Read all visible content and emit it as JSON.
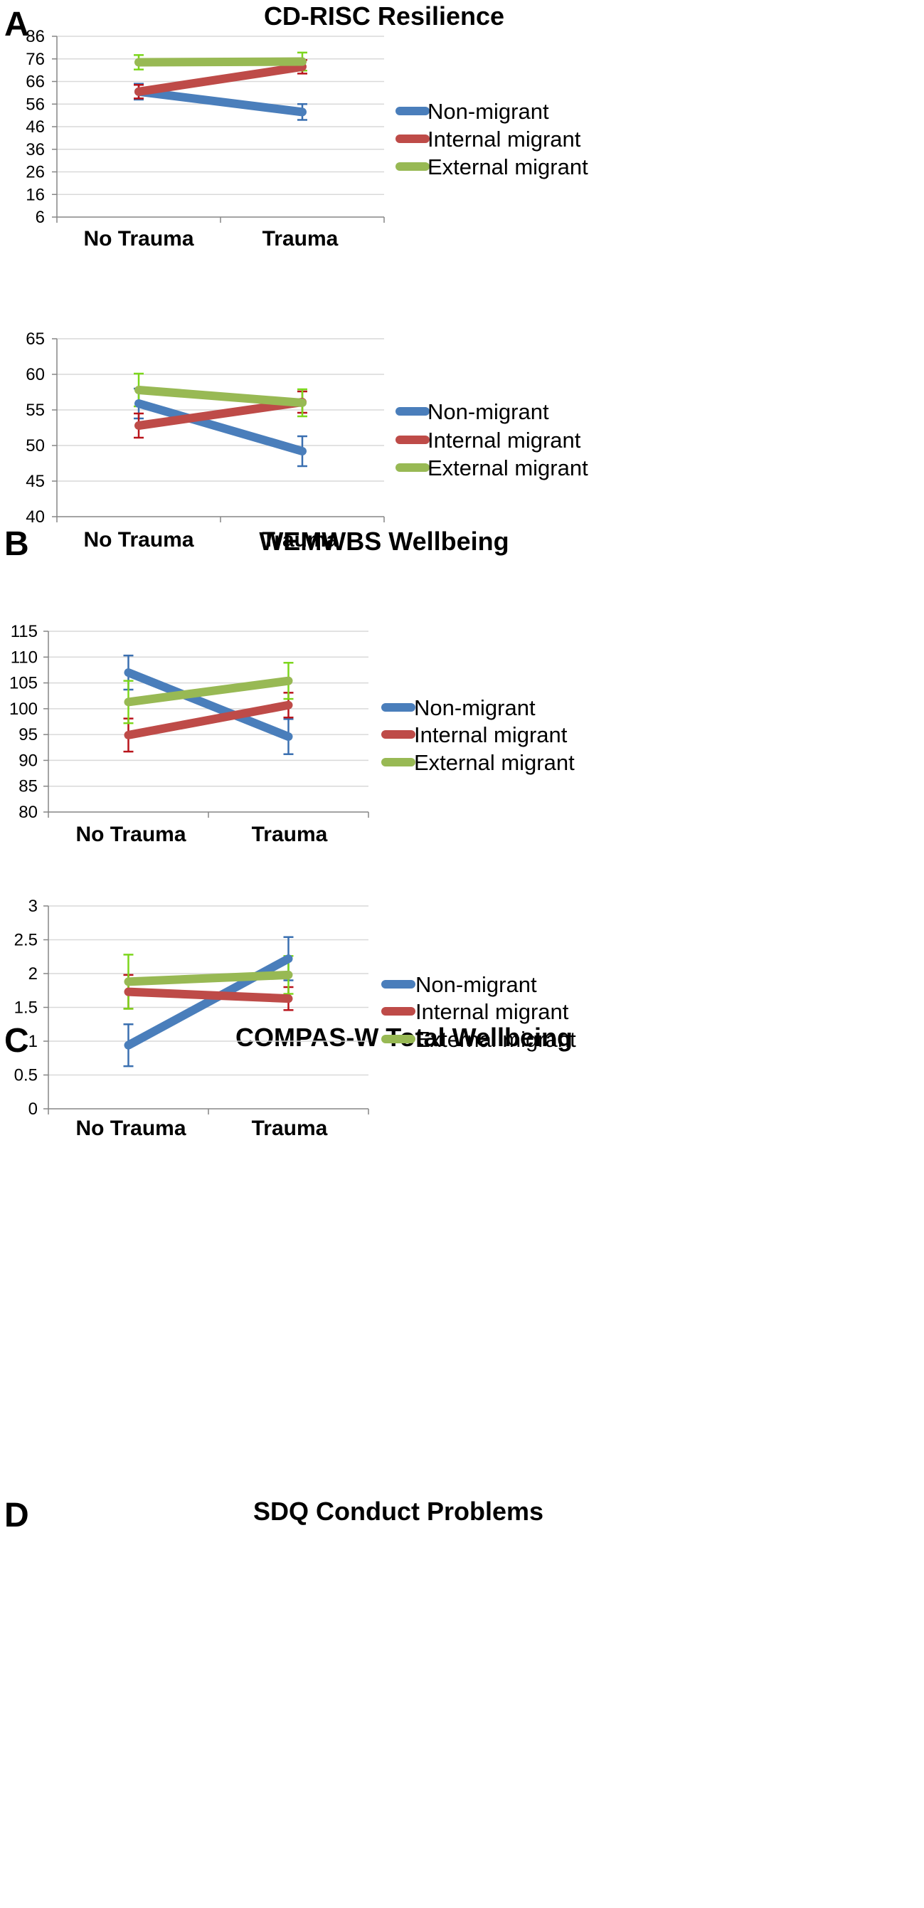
{
  "colors": {
    "non_migrant": "#4a7ebb",
    "internal_migrant": "#be4b48",
    "external_migrant": "#98b954",
    "error_non_migrant": "#3a6fb0",
    "error_internal_migrant": "#b8141b",
    "error_external_migrant": "#7cd61c"
  },
  "chart_data": [
    {
      "panel": "A",
      "type": "line",
      "title": "CD-RISC Resilience",
      "categories": [
        "No Trauma",
        "Trauma"
      ],
      "yticks": [
        "86",
        "76",
        "66",
        "56",
        "46",
        "36",
        "26",
        "16",
        "6"
      ],
      "ylim": [
        6,
        86
      ],
      "legend_position": "right",
      "series": [
        {
          "name": "Non-migrant",
          "values": [
            61.5,
            52.5
          ],
          "errors": [
            3.5,
            3.5
          ]
        },
        {
          "name": "Internal migrant",
          "values": [
            61.5,
            72.5
          ],
          "errors": [
            3.0,
            3.0
          ]
        },
        {
          "name": "External migrant",
          "values": [
            74.5,
            74.8
          ],
          "errors": [
            3.2,
            4.0
          ]
        }
      ]
    },
    {
      "panel": "B",
      "type": "line",
      "title": "WEMWBS Wellbeing",
      "categories": [
        "No Trauma",
        "Trauma"
      ],
      "yticks": [
        "65",
        "60",
        "55",
        "50",
        "45",
        "40"
      ],
      "ylim": [
        40,
        65
      ],
      "legend_position": "right",
      "series": [
        {
          "name": "Non-migrant",
          "values": [
            55.9,
            49.2
          ],
          "errors": [
            2.1,
            2.1
          ]
        },
        {
          "name": "Internal migrant",
          "values": [
            52.8,
            56.1
          ],
          "errors": [
            1.7,
            1.5
          ]
        },
        {
          "name": "External migrant",
          "values": [
            57.8,
            56.0
          ],
          "errors": [
            2.3,
            1.9
          ]
        }
      ]
    },
    {
      "panel": "C",
      "type": "line",
      "title": "COMPAS-W Total Wellbeing",
      "categories": [
        "No Trauma",
        "Trauma"
      ],
      "yticks": [
        "115",
        "110",
        "105",
        "100",
        "95",
        "90",
        "85",
        "80"
      ],
      "ylim": [
        80,
        115
      ],
      "legend_position": "right",
      "series": [
        {
          "name": "Non-migrant",
          "values": [
            107.0,
            94.6
          ],
          "errors": [
            3.3,
            3.4
          ]
        },
        {
          "name": "Internal migrant",
          "values": [
            94.9,
            100.7
          ],
          "errors": [
            3.2,
            2.4
          ]
        },
        {
          "name": "External migrant",
          "values": [
            101.3,
            105.4
          ],
          "errors": [
            4.1,
            3.5
          ]
        }
      ]
    },
    {
      "panel": "D",
      "type": "line",
      "title": "SDQ Conduct Problems",
      "categories": [
        "No Trauma",
        "Trauma"
      ],
      "yticks": [
        "3",
        "2.5",
        "2",
        "1.5",
        "1",
        "0.5",
        "0"
      ],
      "ylim": [
        0,
        3
      ],
      "legend_position": "right",
      "series": [
        {
          "name": "Non-migrant",
          "values": [
            0.94,
            2.22
          ],
          "errors": [
            0.31,
            0.32
          ]
        },
        {
          "name": "Internal migrant",
          "values": [
            1.73,
            1.63
          ],
          "errors": [
            0.25,
            0.17
          ]
        },
        {
          "name": "External migrant",
          "values": [
            1.88,
            1.98
          ],
          "errors": [
            0.4,
            0.28
          ]
        }
      ]
    }
  ]
}
